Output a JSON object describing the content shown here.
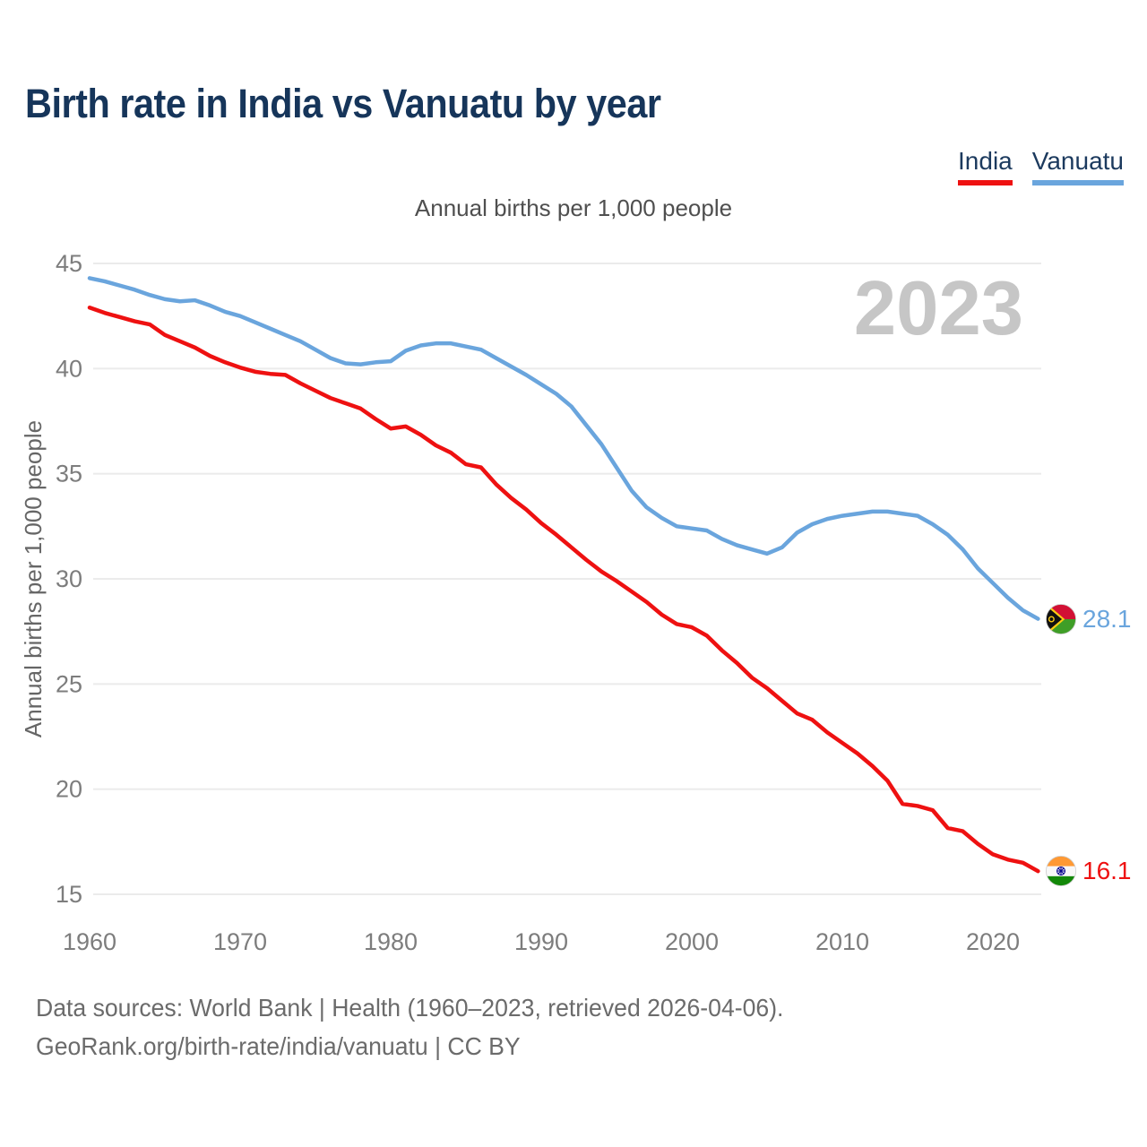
{
  "page": {
    "title": "Birth rate in India vs Vanuatu by year",
    "footer_line1": "Data sources: World Bank | Health (1960–2023, retrieved 2026-04-06).",
    "footer_line2": "GeoRank.org/birth-rate/india/vanuatu | CC BY"
  },
  "legend": [
    {
      "label": "India",
      "color": "#ee1111"
    },
    {
      "label": "Vanuatu",
      "color": "#6aa5dd"
    }
  ],
  "colors": {
    "india": "#ee1111",
    "vanuatu": "#6aa5dd",
    "title_navy": "#16355a",
    "gridline": "#ebebeb",
    "tick_text": "#7d7d7d",
    "watermark_gray": "#c6c6c6"
  },
  "chart_data": {
    "type": "line",
    "title": "Annual births per 1,000 people",
    "xlabel": "",
    "ylabel": "Annual births per 1,000 people",
    "watermark": "2023",
    "grid": "horizontal",
    "legend_position": "top-right",
    "xlim": [
      1960,
      2023
    ],
    "ylim": [
      15,
      45
    ],
    "yticks": [
      15,
      20,
      25,
      30,
      35,
      40,
      45
    ],
    "xticks": [
      1960,
      1970,
      1980,
      1990,
      2000,
      2010,
      2020
    ],
    "x": [
      1960,
      1961,
      1962,
      1963,
      1964,
      1965,
      1966,
      1967,
      1968,
      1969,
      1970,
      1971,
      1972,
      1973,
      1974,
      1975,
      1976,
      1977,
      1978,
      1979,
      1980,
      1981,
      1982,
      1983,
      1984,
      1985,
      1986,
      1987,
      1988,
      1989,
      1990,
      1991,
      1992,
      1993,
      1994,
      1995,
      1996,
      1997,
      1998,
      1999,
      2000,
      2001,
      2002,
      2003,
      2004,
      2005,
      2006,
      2007,
      2008,
      2009,
      2010,
      2011,
      2012,
      2013,
      2014,
      2015,
      2016,
      2017,
      2018,
      2019,
      2020,
      2021,
      2022,
      2023
    ],
    "series": [
      {
        "name": "India",
        "color": "#ee1111",
        "end_label": "16.1",
        "flag": "india",
        "values": [
          42.9,
          42.65,
          42.45,
          42.25,
          42.1,
          41.6,
          41.3,
          41.0,
          40.6,
          40.3,
          40.05,
          39.85,
          39.75,
          39.7,
          39.3,
          38.95,
          38.6,
          38.35,
          38.1,
          37.6,
          37.15,
          37.25,
          36.85,
          36.35,
          36.0,
          35.45,
          35.3,
          34.5,
          33.85,
          33.3,
          32.65,
          32.1,
          31.5,
          30.9,
          30.35,
          29.9,
          29.4,
          28.9,
          28.3,
          27.85,
          27.7,
          27.3,
          26.6,
          26.0,
          25.3,
          24.8,
          24.2,
          23.6,
          23.3,
          22.7,
          22.2,
          21.7,
          21.1,
          20.4,
          19.3,
          19.2,
          19.0,
          18.15,
          18.0,
          17.4,
          16.9,
          16.65,
          16.5,
          16.1
        ]
      },
      {
        "name": "Vanuatu",
        "color": "#6aa5dd",
        "end_label": "28.1",
        "flag": "vanuatu",
        "values": [
          44.3,
          44.15,
          43.95,
          43.75,
          43.5,
          43.3,
          43.2,
          43.25,
          43.0,
          42.7,
          42.5,
          42.2,
          41.9,
          41.6,
          41.3,
          40.9,
          40.5,
          40.25,
          40.2,
          40.3,
          40.35,
          40.85,
          41.1,
          41.2,
          41.2,
          41.05,
          40.9,
          40.5,
          40.1,
          39.7,
          39.25,
          38.8,
          38.2,
          37.3,
          36.4,
          35.3,
          34.2,
          33.4,
          32.9,
          32.5,
          32.4,
          32.3,
          31.9,
          31.6,
          31.4,
          31.2,
          31.5,
          32.2,
          32.6,
          32.85,
          33.0,
          33.1,
          33.2,
          33.2,
          33.1,
          33.0,
          32.6,
          32.1,
          31.4,
          30.5,
          29.8,
          29.1,
          28.5,
          28.1
        ]
      }
    ]
  }
}
